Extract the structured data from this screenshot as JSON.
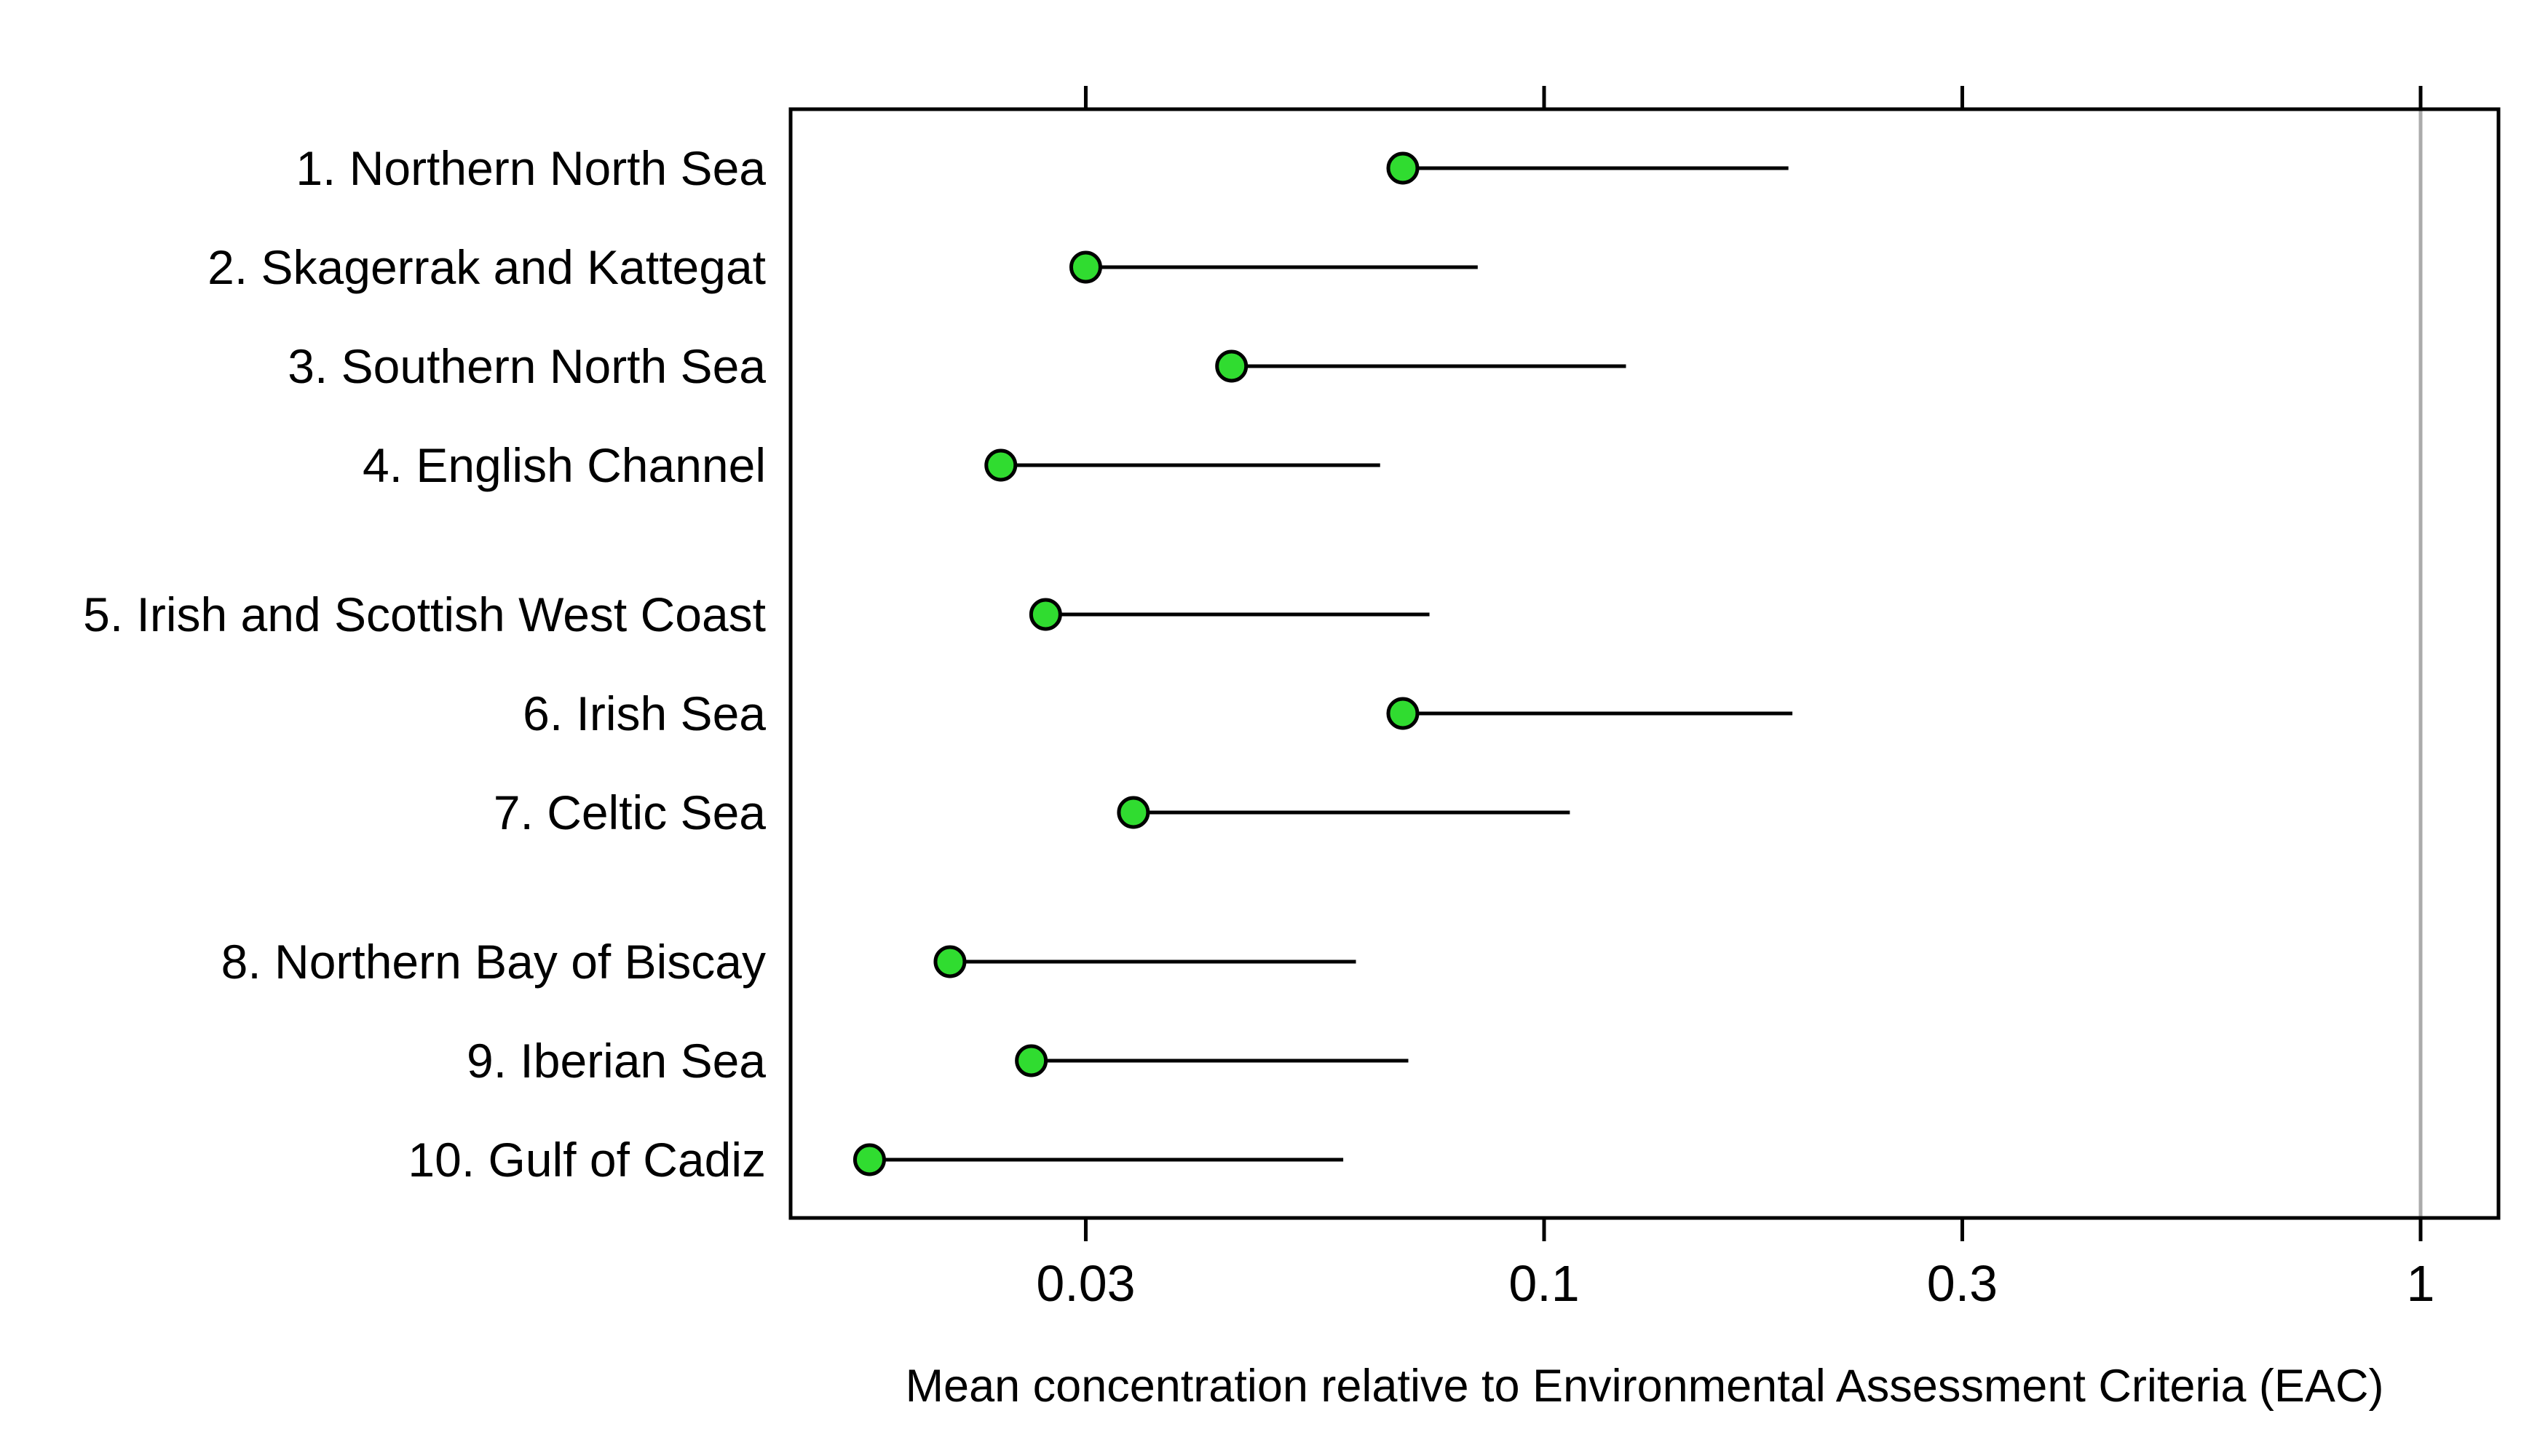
{
  "chart_data": {
    "type": "scatter",
    "variant": "lollipop-dot-with-upper-range",
    "title": "",
    "xlabel": "Mean concentration relative to Environmental Assessment Criteria (EAC)",
    "x_scale": "log10",
    "x_tick_labels": [
      "0.03",
      "0.1",
      "0.3",
      "1"
    ],
    "x_tick_values": [
      0.03,
      0.1,
      0.3,
      1
    ],
    "x_range": [
      0.0138,
      1.23
    ],
    "reference_line_x": 1,
    "grid": false,
    "legend": "none",
    "categories": [
      "1. Northern North Sea",
      "2. Skagerrak and Kattegat",
      "3. Southern North Sea",
      "4. English Channel",
      "5. Irish and Scottish West Coast",
      "6. Irish Sea",
      "7. Celtic Sea",
      "8. Northern Bay of Biscay",
      "9. Iberian Sea",
      "10. Gulf of Cadiz"
    ],
    "group_breaks_after": [
      3,
      6
    ],
    "series": [
      {
        "name": "mean",
        "marker": "circle",
        "color": "#30dc30",
        "values": [
          0.069,
          0.03,
          0.044,
          0.024,
          0.027,
          0.069,
          0.034,
          0.021,
          0.026,
          0.017
        ]
      },
      {
        "name": "upper_range",
        "marker": "line-end",
        "color": "#000000",
        "values": [
          0.19,
          0.084,
          0.124,
          0.065,
          0.074,
          0.192,
          0.107,
          0.061,
          0.07,
          0.059
        ]
      }
    ],
    "colors": {
      "marker_fill": "#30dc30",
      "marker_stroke": "#000000",
      "range_line": "#000000",
      "reference_line": "#ababab",
      "axis": "#000000",
      "text": "#000000",
      "background": "#ffffff"
    }
  }
}
